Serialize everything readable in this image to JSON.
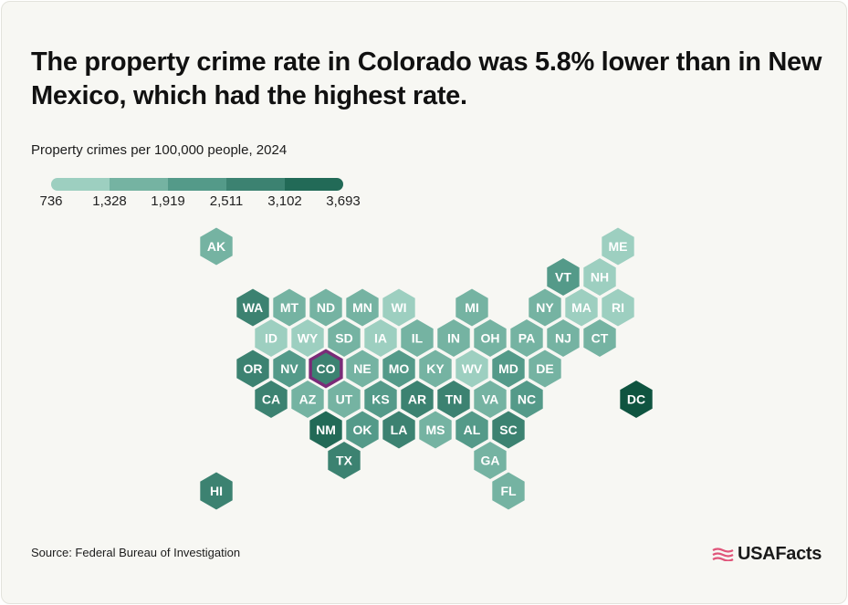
{
  "title": "The property crime rate in Colorado was 5.8% lower than in New Mexico, which had the highest rate.",
  "subtitle": "Property crimes per 100,000 people, 2024",
  "legend": {
    "ticks": [
      "736",
      "1,328",
      "1,919",
      "2,511",
      "3,102",
      "3,693"
    ],
    "colors": [
      "#9dcfc0",
      "#75b3a2",
      "#549a89",
      "#3c8271",
      "#226a57",
      "#0f5440"
    ]
  },
  "highlight_color": "#7a2b78",
  "map": {
    "highlighted_state": "CO",
    "states": [
      {
        "abbr": "AK",
        "col": 0,
        "row": 0,
        "bin": 1
      },
      {
        "abbr": "ME",
        "col": 11,
        "row": 0,
        "bin": 0
      },
      {
        "abbr": "VT",
        "col": 9.5,
        "row": 1,
        "bin": 2
      },
      {
        "abbr": "NH",
        "col": 10.5,
        "row": 1,
        "bin": 0
      },
      {
        "abbr": "WA",
        "col": 1,
        "row": 2,
        "bin": 3
      },
      {
        "abbr": "MT",
        "col": 2,
        "row": 2,
        "bin": 1
      },
      {
        "abbr": "ND",
        "col": 3,
        "row": 2,
        "bin": 1
      },
      {
        "abbr": "MN",
        "col": 4,
        "row": 2,
        "bin": 1
      },
      {
        "abbr": "WI",
        "col": 5,
        "row": 2,
        "bin": 0
      },
      {
        "abbr": "MI",
        "col": 7,
        "row": 2,
        "bin": 1
      },
      {
        "abbr": "NY",
        "col": 9,
        "row": 2,
        "bin": 1
      },
      {
        "abbr": "MA",
        "col": 10,
        "row": 2,
        "bin": 0
      },
      {
        "abbr": "RI",
        "col": 11,
        "row": 2,
        "bin": 0
      },
      {
        "abbr": "ID",
        "col": 1.5,
        "row": 3,
        "bin": 0
      },
      {
        "abbr": "WY",
        "col": 2.5,
        "row": 3,
        "bin": 0
      },
      {
        "abbr": "SD",
        "col": 3.5,
        "row": 3,
        "bin": 1
      },
      {
        "abbr": "IA",
        "col": 4.5,
        "row": 3,
        "bin": 0
      },
      {
        "abbr": "IL",
        "col": 5.5,
        "row": 3,
        "bin": 1
      },
      {
        "abbr": "IN",
        "col": 6.5,
        "row": 3,
        "bin": 1
      },
      {
        "abbr": "OH",
        "col": 7.5,
        "row": 3,
        "bin": 1
      },
      {
        "abbr": "PA",
        "col": 8.5,
        "row": 3,
        "bin": 1
      },
      {
        "abbr": "NJ",
        "col": 9.5,
        "row": 3,
        "bin": 1
      },
      {
        "abbr": "CT",
        "col": 10.5,
        "row": 3,
        "bin": 1
      },
      {
        "abbr": "OR",
        "col": 1,
        "row": 4,
        "bin": 3
      },
      {
        "abbr": "NV",
        "col": 2,
        "row": 4,
        "bin": 2
      },
      {
        "abbr": "CO",
        "col": 3,
        "row": 4,
        "bin": 3
      },
      {
        "abbr": "NE",
        "col": 4,
        "row": 4,
        "bin": 1
      },
      {
        "abbr": "MO",
        "col": 5,
        "row": 4,
        "bin": 2
      },
      {
        "abbr": "KY",
        "col": 6,
        "row": 4,
        "bin": 1
      },
      {
        "abbr": "WV",
        "col": 7,
        "row": 4,
        "bin": 0
      },
      {
        "abbr": "MD",
        "col": 8,
        "row": 4,
        "bin": 2
      },
      {
        "abbr": "DE",
        "col": 9,
        "row": 4,
        "bin": 1
      },
      {
        "abbr": "CA",
        "col": 1.5,
        "row": 5,
        "bin": 3
      },
      {
        "abbr": "AZ",
        "col": 2.5,
        "row": 5,
        "bin": 1
      },
      {
        "abbr": "UT",
        "col": 3.5,
        "row": 5,
        "bin": 1
      },
      {
        "abbr": "KS",
        "col": 4.5,
        "row": 5,
        "bin": 2
      },
      {
        "abbr": "AR",
        "col": 5.5,
        "row": 5,
        "bin": 3
      },
      {
        "abbr": "TN",
        "col": 6.5,
        "row": 5,
        "bin": 3
      },
      {
        "abbr": "VA",
        "col": 7.5,
        "row": 5,
        "bin": 1
      },
      {
        "abbr": "NC",
        "col": 8.5,
        "row": 5,
        "bin": 2
      },
      {
        "abbr": "DC",
        "col": 11.5,
        "row": 5,
        "bin": 5
      },
      {
        "abbr": "NM",
        "col": 3,
        "row": 6,
        "bin": 4
      },
      {
        "abbr": "OK",
        "col": 4,
        "row": 6,
        "bin": 2
      },
      {
        "abbr": "LA",
        "col": 5,
        "row": 6,
        "bin": 3
      },
      {
        "abbr": "MS",
        "col": 6,
        "row": 6,
        "bin": 1
      },
      {
        "abbr": "AL",
        "col": 7,
        "row": 6,
        "bin": 2
      },
      {
        "abbr": "SC",
        "col": 8,
        "row": 6,
        "bin": 3
      },
      {
        "abbr": "TX",
        "col": 3.5,
        "row": 7,
        "bin": 3
      },
      {
        "abbr": "GA",
        "col": 7.5,
        "row": 7,
        "bin": 1
      },
      {
        "abbr": "HI",
        "col": 0,
        "row": 8,
        "bin": 3
      },
      {
        "abbr": "FL",
        "col": 8,
        "row": 8,
        "bin": 1
      }
    ]
  },
  "source": "Source: Federal Bureau of Investigation",
  "brand": {
    "name": "USAFacts",
    "colors": [
      "#e0557a",
      "#2b2b2b"
    ]
  }
}
